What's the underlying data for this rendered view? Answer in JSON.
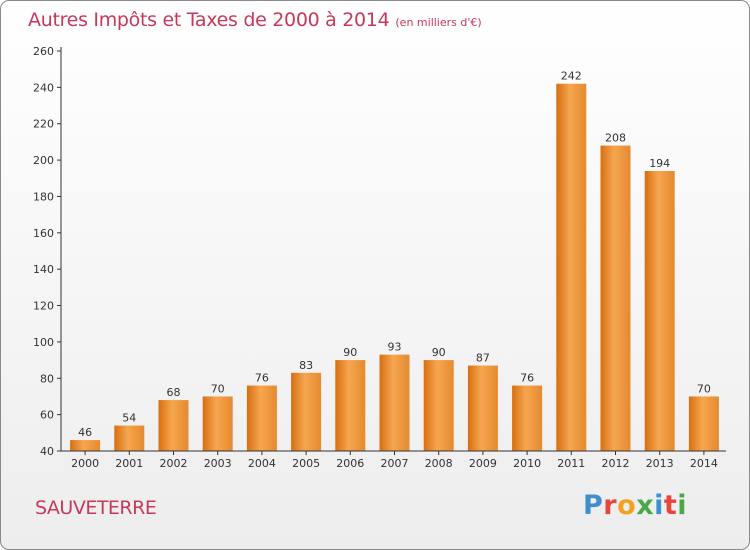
{
  "title": "Autres Impôts et Taxes de 2000 à 2014",
  "subtitle": "(en milliers d'€)",
  "commune": "SAUVETERRE",
  "brand": {
    "letters": [
      "P",
      "r",
      "o",
      "x",
      "i",
      "t",
      "i"
    ],
    "colors": [
      "#3d8fd0",
      "#e8453c",
      "#f2a21c",
      "#4aa84a",
      "#3d8fd0",
      "#e8453c",
      "#4aa84a"
    ]
  },
  "colors": {
    "title": "#c8385a",
    "bar_light": "#f6a650",
    "bar_dark": "#d66f10",
    "axis": "#333333"
  },
  "chart_data": {
    "type": "bar",
    "categories": [
      "2000",
      "2001",
      "2002",
      "2003",
      "2004",
      "2005",
      "2006",
      "2007",
      "2008",
      "2009",
      "2010",
      "2011",
      "2012",
      "2013",
      "2014"
    ],
    "values": [
      46,
      54,
      68,
      70,
      76,
      83,
      90,
      93,
      90,
      87,
      76,
      242,
      208,
      194,
      70
    ],
    "yticks": [
      40,
      60,
      80,
      100,
      120,
      140,
      160,
      180,
      200,
      220,
      240,
      260
    ],
    "ylim": [
      40,
      260
    ],
    "grid": false,
    "data_labels": true
  }
}
